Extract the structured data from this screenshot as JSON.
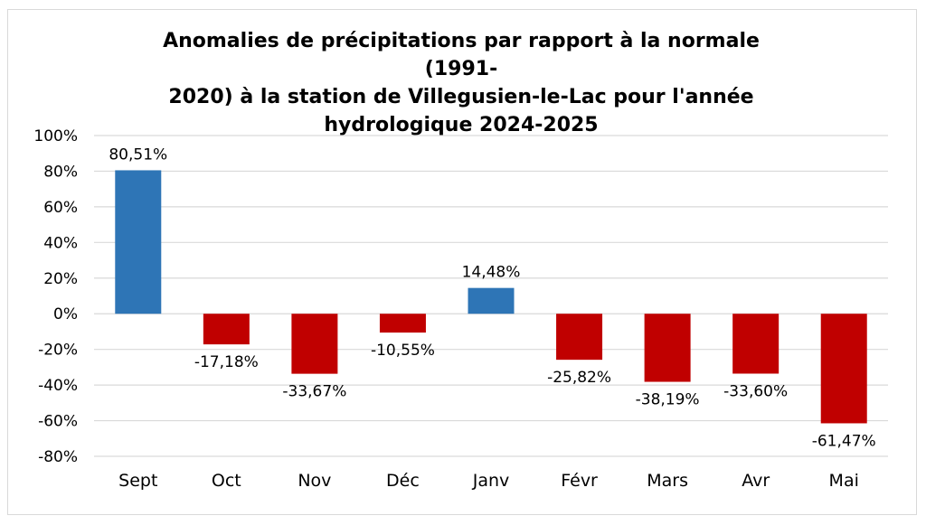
{
  "chart_data": {
    "type": "bar",
    "title": "Anomalies de précipitations par rapport à la normale (1991-\n2020) à la station de Villegusien-le-Lac pour l'année\nhydrologique 2024-2025",
    "categories": [
      "Sept",
      "Oct",
      "Nov",
      "Déc",
      "Janv",
      "Févr",
      "Mars",
      "Avr",
      "Mai"
    ],
    "values": [
      80.51,
      -17.18,
      -33.67,
      -10.55,
      14.48,
      -25.82,
      -38.19,
      -33.6,
      -61.47
    ],
    "data_labels": [
      "80,51%",
      "-17,18%",
      "-33,67%",
      "-10,55%",
      "14,48%",
      "-25,82%",
      "-38,19%",
      "-33,60%",
      "-61,47%"
    ],
    "y_ticks": [
      100,
      80,
      60,
      40,
      20,
      0,
      -20,
      -40,
      -60,
      -80
    ],
    "y_tick_labels": [
      "100%",
      "80%",
      "60%",
      "40%",
      "20%",
      "0%",
      "-20%",
      "-40%",
      "-60%",
      "-80%"
    ],
    "ylim": [
      -80,
      100
    ],
    "grid": true,
    "legend": "none",
    "colors": {
      "positive": "#2e75b6",
      "negative": "#c00000",
      "grid": "#d9d9d9"
    }
  }
}
